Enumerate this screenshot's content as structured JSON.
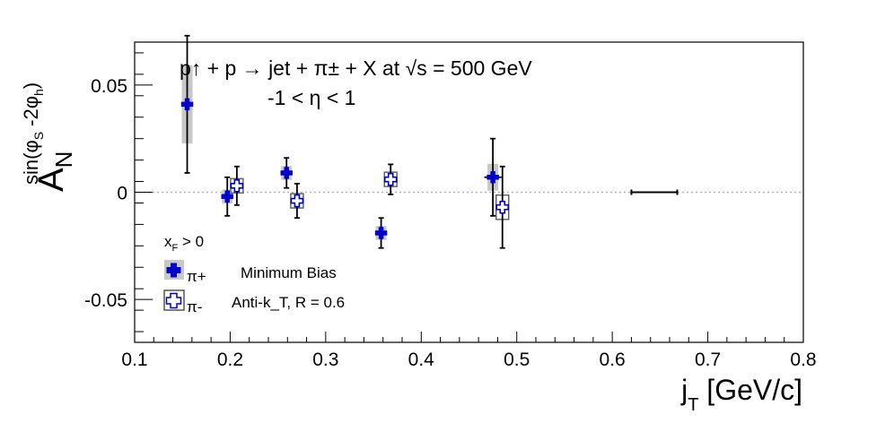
{
  "chart_data": {
    "type": "scatter",
    "xlabel": "j_T [GeV/c]",
    "ylabel": "A_N^{sin(φ_S - 2φ_h)}",
    "xlim": [
      0.1,
      0.8
    ],
    "ylim": [
      -0.07,
      0.07
    ],
    "x_ticks": [
      "0.1",
      "0.2",
      "0.3",
      "0.4",
      "0.5",
      "0.6",
      "0.7",
      "0.8"
    ],
    "y_ticks": [
      "-0.05",
      "0",
      "0.05"
    ],
    "zero_line": true,
    "grid": false,
    "legend_position": "bottom-left",
    "annotation": {
      "line1": "p↑ + p → jet + π± + X at √s = 500 GeV",
      "line2": "-1 < η < 1"
    },
    "legend": {
      "header": "x_F > 0",
      "entries": [
        {
          "symbol": "π+",
          "text": "Minimum Bias"
        },
        {
          "symbol": "π-",
          "text": "Anti-k_T, R = 0.6"
        }
      ]
    },
    "series": [
      {
        "name": "π+",
        "color": "#0000cc",
        "marker": "filled-cross",
        "x": [
          0.155,
          0.197,
          0.259,
          0.358,
          0.475
        ],
        "y": [
          0.041,
          -0.002,
          0.009,
          -0.019,
          0.007
        ],
        "yerr": [
          0.032,
          0.009,
          0.007,
          0.007,
          0.018
        ],
        "xerr": [
          0.0,
          0.003,
          0.0,
          0.0,
          0.009
        ],
        "syst": [
          0.017,
          0.002,
          0.002,
          0.002,
          0.005
        ]
      },
      {
        "name": "π-",
        "color": "#0000cc",
        "marker": "open-cross",
        "x": [
          0.207,
          0.27,
          0.368,
          0.485
        ],
        "y": [
          0.003,
          -0.004,
          0.006,
          -0.007
        ],
        "yerr": [
          0.009,
          0.008,
          0.007,
          0.019
        ],
        "xerr": [
          0.0,
          0.0,
          0.0,
          0.0
        ],
        "syst": [
          0.001,
          0.001,
          0.001,
          0.004
        ]
      }
    ],
    "extra_marks": [
      {
        "type": "hline-segment",
        "x_from": 0.62,
        "x_to": 0.668,
        "y": 0.0
      }
    ],
    "colors": {
      "marker": "#0000cc",
      "syst_box": "#c8c8c8",
      "zero_line": "#b4b4b4"
    }
  }
}
